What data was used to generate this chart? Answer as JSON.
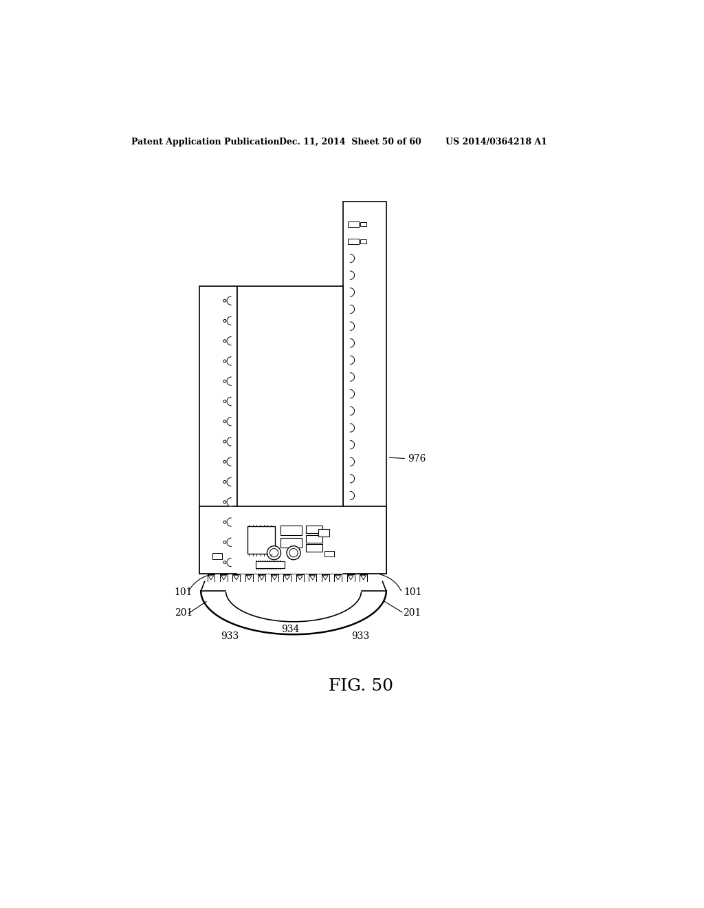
{
  "bg_color": "#ffffff",
  "header_left": "Patent Application Publication",
  "header_mid": "Dec. 11, 2014  Sheet 50 of 60",
  "header_right": "US 2014/0364218 A1",
  "fig_label": "FIG. 50",
  "label_976": "976",
  "label_101_left": "101",
  "label_101_right": "101",
  "label_201_left": "201",
  "label_201_right": "201",
  "label_933_left": "933",
  "label_933_right": "933",
  "label_934": "934",
  "line_color": "#000000",
  "lw_main": 1.2,
  "lw_thick": 1.8
}
